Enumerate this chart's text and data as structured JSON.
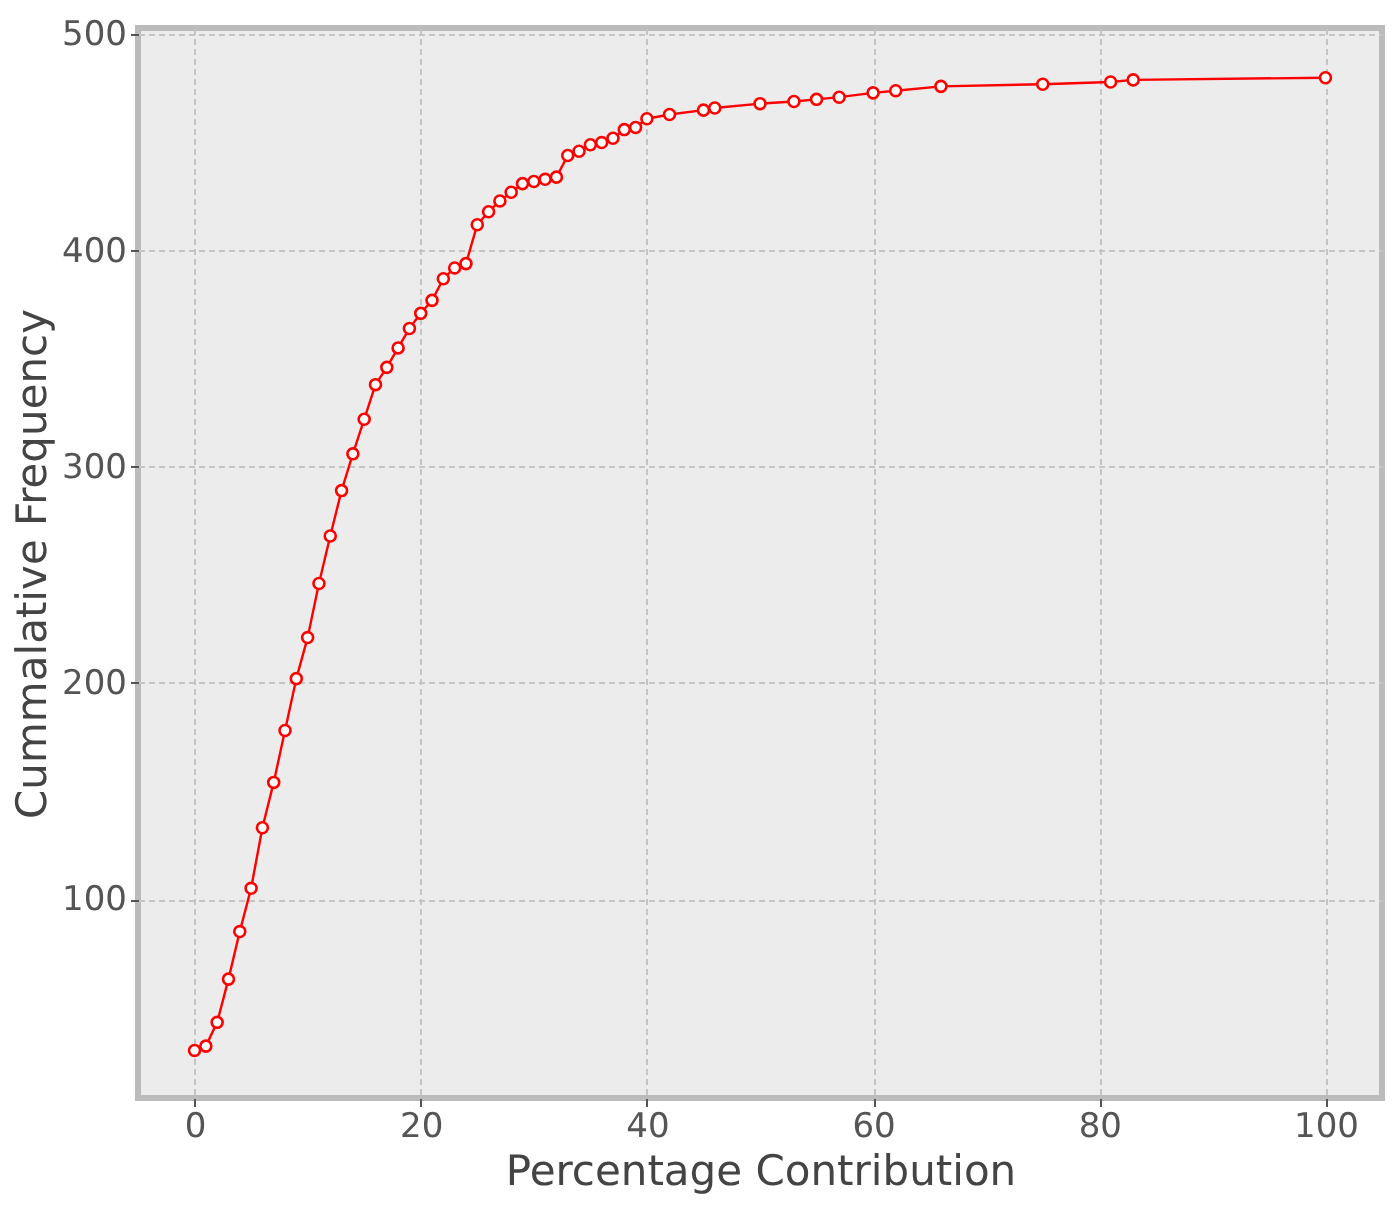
{
  "chart_data": {
    "type": "line",
    "xlabel": "Percentage Contribution",
    "ylabel": "Cummalative Frequency",
    "x": [
      0,
      1,
      2,
      3,
      4,
      5,
      6,
      7,
      8,
      9,
      10,
      11,
      12,
      13,
      14,
      15,
      16,
      17,
      18,
      19,
      20,
      21,
      22,
      23,
      24,
      25,
      26,
      27,
      28,
      29,
      30,
      31,
      32,
      33,
      34,
      35,
      36,
      37,
      38,
      39,
      40,
      42,
      45,
      46,
      50,
      53,
      55,
      57,
      60,
      62,
      66,
      75,
      81,
      83,
      100
    ],
    "series": [
      {
        "color": "#ff0000",
        "values": [
          30,
          32,
          43,
          63,
          85,
          105,
          133,
          154,
          178,
          202,
          221,
          246,
          268,
          289,
          306,
          322,
          338,
          346,
          355,
          364,
          371,
          377,
          387,
          392,
          394,
          412,
          418,
          423,
          427,
          431,
          432,
          433,
          434,
          444,
          446,
          449,
          450,
          452,
          456,
          457,
          461,
          463,
          465,
          466,
          468,
          469,
          470,
          471,
          473,
          474,
          476,
          477,
          478,
          479,
          480
        ]
      }
    ],
    "xlim": [
      -5,
      105
    ],
    "ylim": [
      8,
      503
    ],
    "xticks": [
      0,
      20,
      40,
      60,
      80,
      100
    ],
    "yticks": [
      100,
      200,
      300,
      400,
      500
    ],
    "grid": true,
    "marker": "circle",
    "line_style": "solid"
  }
}
